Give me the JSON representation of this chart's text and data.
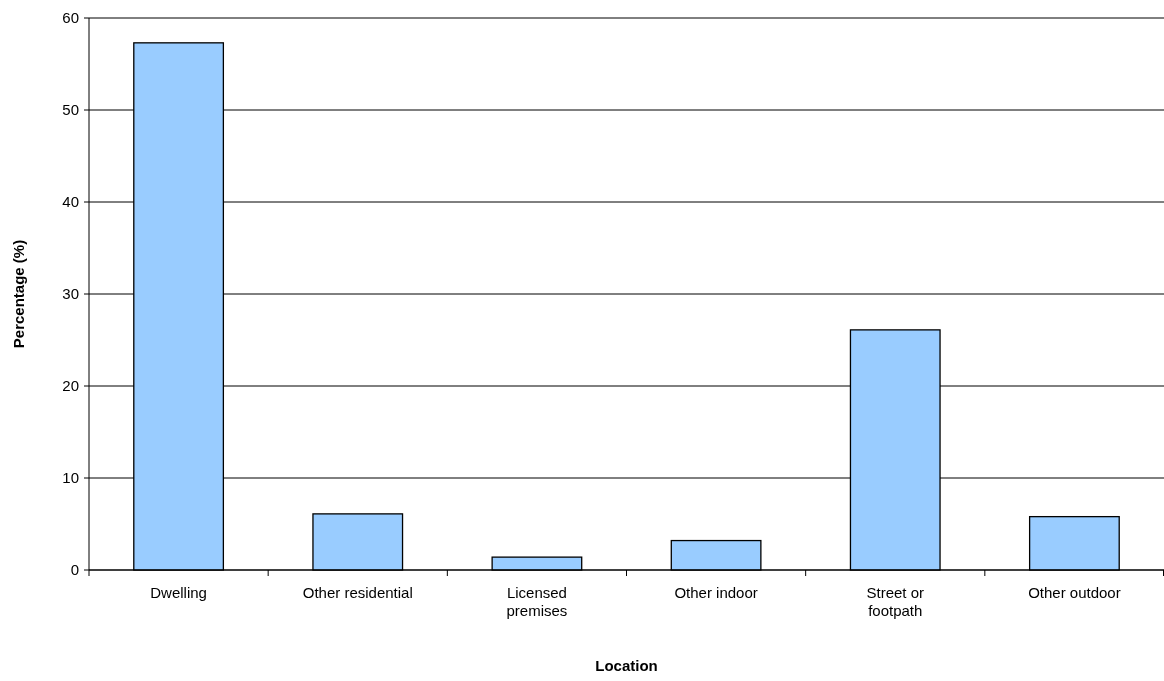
{
  "chart_data": {
    "type": "bar",
    "xlabel": "Location",
    "ylabel": "Percentage (%)",
    "categories": [
      "Dwelling",
      "Other residential",
      "Licensed premises",
      "Other indoor",
      "Street or footpath",
      "Other outdoor"
    ],
    "values": [
      57.3,
      6.1,
      1.4,
      3.2,
      26.1,
      5.8
    ],
    "color": "#99ccff",
    "ylim": [
      0,
      60
    ],
    "yticks": [
      0,
      10,
      20,
      30,
      40,
      50,
      60
    ],
    "grid": "y"
  }
}
